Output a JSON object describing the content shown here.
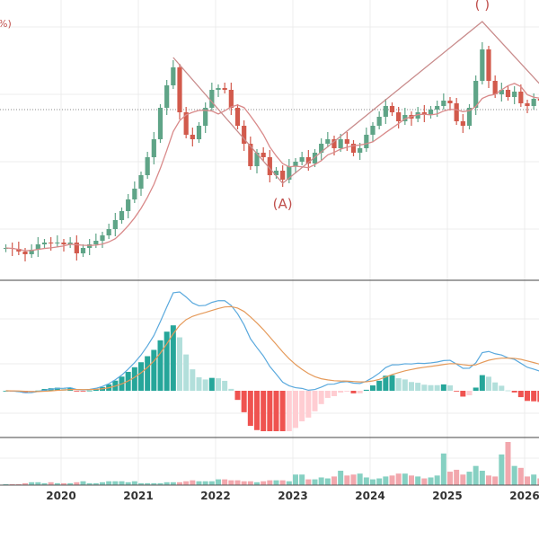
{
  "chart_data": [
    {
      "type": "candlestick",
      "title_fragment": "%)",
      "start_month": "2019-04",
      "interval": "monthly",
      "x_tick_labels": [
        "2020",
        "2021",
        "2022",
        "2023",
        "2024",
        "2025",
        "2026"
      ],
      "close": [
        12,
        11.5,
        10,
        8.5,
        11,
        14,
        15,
        14.5,
        15,
        14,
        15,
        9,
        12,
        14,
        16,
        19,
        22.5,
        27.5,
        32.5,
        39,
        45,
        52.5,
        62.5,
        72.5,
        90,
        102.5,
        112.5,
        87.5,
        75,
        72.5,
        80,
        90,
        100,
        101,
        100,
        90,
        80,
        70,
        57.5,
        65,
        62.5,
        52.5,
        55,
        50,
        57.5,
        60,
        62.5,
        59,
        65,
        70,
        72.5,
        67.5,
        72.5,
        70,
        65,
        67.5,
        75,
        80,
        85,
        91,
        87.5,
        82.5,
        86,
        84,
        87.5,
        86,
        89,
        91,
        94,
        92.5,
        82.5,
        80,
        90,
        105,
        122.5,
        105,
        97.5,
        100,
        96,
        99,
        92.5,
        91,
        95,
        94
      ],
      "moving_average_period": 7,
      "reference_level": 89,
      "annotations": [
        {
          "label": "(A)",
          "month": "2022-11"
        },
        {
          "label": "( )",
          "month": "2025-06"
        }
      ],
      "wave_points": [
        {
          "month": "2021-06",
          "price": 118
        },
        {
          "month": "2022-11",
          "price": 48
        },
        {
          "month": "2025-06",
          "price": 138
        },
        {
          "month": "2026-03",
          "price": 103
        }
      ],
      "colors": {
        "up": "#5fa487",
        "down": "#d25a4c",
        "ma": "#d98a8a",
        "wave": "#c98c8c"
      },
      "grid": true
    },
    {
      "type": "macd",
      "params": [
        12,
        26,
        9
      ],
      "colors": {
        "macd": "#5aa9dd",
        "signal": "#e59a5a",
        "pos_strong": "#26a69a",
        "pos_weak": "#b2dfdb",
        "neg_strong": "#ef5350",
        "neg_weak": "#ffcdd2"
      }
    },
    {
      "type": "bar",
      "name_hint": "volume",
      "values": [
        1,
        1,
        1,
        2,
        3,
        3,
        2,
        3,
        2,
        2,
        2,
        3,
        4,
        2,
        2,
        3,
        4,
        4,
        4,
        3,
        4,
        2,
        2,
        2,
        2,
        3,
        3,
        3,
        4,
        5,
        4,
        4,
        4,
        6,
        6,
        5,
        5,
        4,
        4,
        3,
        4,
        5,
        5,
        5,
        4,
        11,
        11,
        6,
        6,
        8,
        7,
        9,
        15,
        10,
        11,
        12,
        8,
        6,
        7,
        9,
        10,
        12,
        12,
        10,
        9,
        7,
        8,
        10,
        33,
        14,
        16,
        11,
        14,
        20,
        15,
        10,
        9,
        32,
        45,
        20,
        18,
        9,
        11,
        7
      ],
      "colors": {
        "up": "#86d0c2",
        "down": "#f2a7ad"
      }
    }
  ]
}
